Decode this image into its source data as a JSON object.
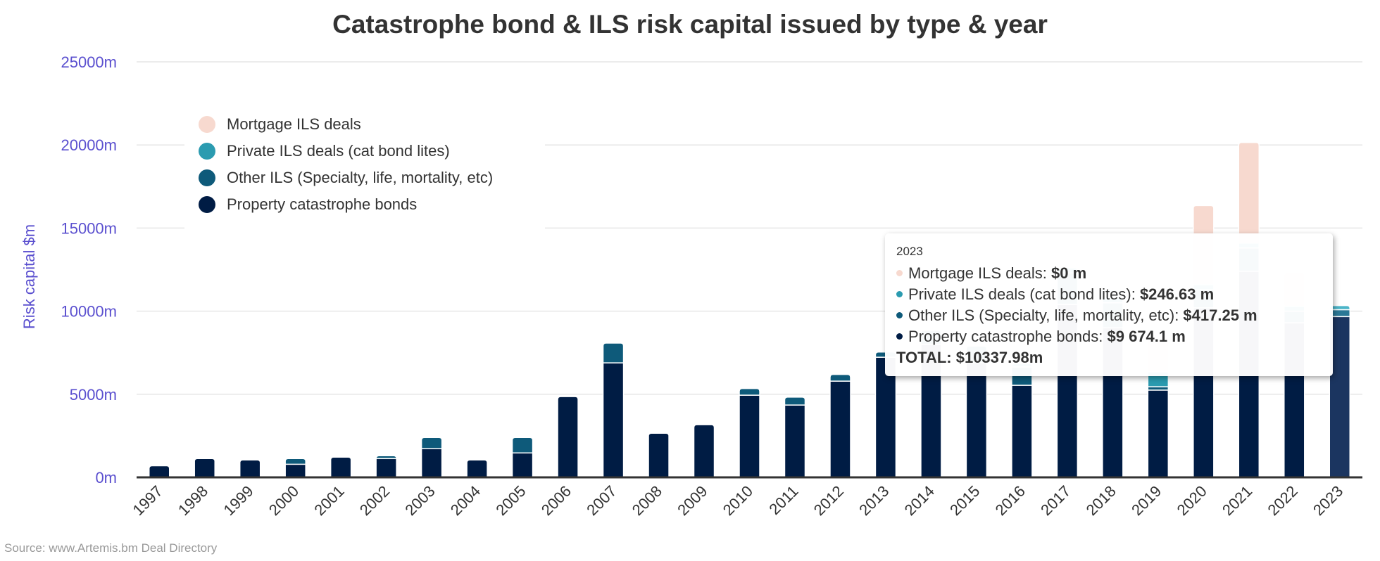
{
  "chart_data": {
    "type": "bar",
    "stacked": true,
    "title": "Catastrophe bond & ILS risk capital issued by type & year",
    "xlabel": "",
    "ylabel": "Risk capital $m",
    "ylim": [
      0,
      25000
    ],
    "yticks": [
      0,
      5000,
      10000,
      15000,
      20000,
      25000
    ],
    "ytick_suffix": "m",
    "grid": true,
    "legend_position": "top-left",
    "categories": [
      "1997",
      "1998",
      "1999",
      "2000",
      "2001",
      "2002",
      "2003",
      "2004",
      "2005",
      "2006",
      "2007",
      "2008",
      "2009",
      "2010",
      "2011",
      "2012",
      "2013",
      "2014",
      "2015",
      "2016",
      "2017",
      "2018",
      "2019",
      "2020",
      "2021",
      "2022",
      "2023"
    ],
    "series": [
      {
        "name": "Property catastrophe bonds",
        "color": "#001c44",
        "hover_color": "#1b3560",
        "values": [
          700,
          1130,
          1045,
          790,
          1215,
          1130,
          1725,
          1045,
          1470,
          4860,
          6890,
          2655,
          3165,
          4945,
          4350,
          5790,
          7230,
          8000,
          6900,
          5540,
          10400,
          9000,
          5250,
          10200,
          12400,
          9300,
          9674.1
        ]
      },
      {
        "name": "Other ILS (Specialty, life, mortality, etc)",
        "color": "#0e5a7a",
        "hover_color": "#2a7896",
        "values": [
          0,
          0,
          0,
          340,
          0,
          170,
          675,
          0,
          930,
          0,
          1190,
          0,
          0,
          400,
          480,
          400,
          310,
          840,
          1000,
          1100,
          1900,
          1500,
          200,
          1100,
          1400,
          700,
          417.25
        ]
      },
      {
        "name": "Private ILS deals (cat bond lites)",
        "color": "#2b9bb0",
        "hover_color": "#4cb5c8",
        "values": [
          0,
          0,
          0,
          0,
          0,
          0,
          0,
          0,
          0,
          0,
          0,
          0,
          0,
          0,
          0,
          0,
          0,
          0,
          0,
          200,
          300,
          300,
          900,
          300,
          300,
          300,
          246.63
        ]
      },
      {
        "name": "Mortgage ILS deals",
        "color": "#f7d9cf",
        "hover_color": "#f7d9cf",
        "values": [
          0,
          0,
          0,
          0,
          0,
          0,
          0,
          0,
          0,
          0,
          0,
          0,
          0,
          0,
          0,
          0,
          0,
          0,
          0,
          0,
          0,
          0,
          2500,
          4756,
          6050,
          2000,
          0
        ]
      }
    ],
    "highlighted_category": "2023"
  },
  "legend": {
    "items": [
      {
        "label": "Mortgage ILS deals",
        "color": "#f7d9cf"
      },
      {
        "label": "Private ILS deals (cat bond lites)",
        "color": "#2b9bb0"
      },
      {
        "label": "Other ILS (Specialty, life, mortality, etc)",
        "color": "#0e5a7a"
      },
      {
        "label": "Property catastrophe bonds",
        "color": "#001c44"
      }
    ]
  },
  "tooltip": {
    "year": "2023",
    "rows": [
      {
        "label": "Mortgage ILS deals: ",
        "value": "$0 m",
        "color": "#f7d9cf"
      },
      {
        "label": "Private ILS deals (cat bond lites): ",
        "value": "$246.63 m",
        "color": "#2b9bb0"
      },
      {
        "label": "Other ILS (Specialty, life, mortality, etc): ",
        "value": "$417.25 m",
        "color": "#0e5a7a"
      },
      {
        "label": "Property catastrophe bonds: ",
        "value": "$9 674.1 m",
        "color": "#001c44"
      }
    ],
    "total": "TOTAL: $10337.98m"
  },
  "source": "Source: www.Artemis.bm Deal Directory",
  "colors": {
    "axis_label": "#5a4fcf",
    "gridline": "#e6e6e6",
    "axis_line": "#333333",
    "text": "#333333"
  }
}
